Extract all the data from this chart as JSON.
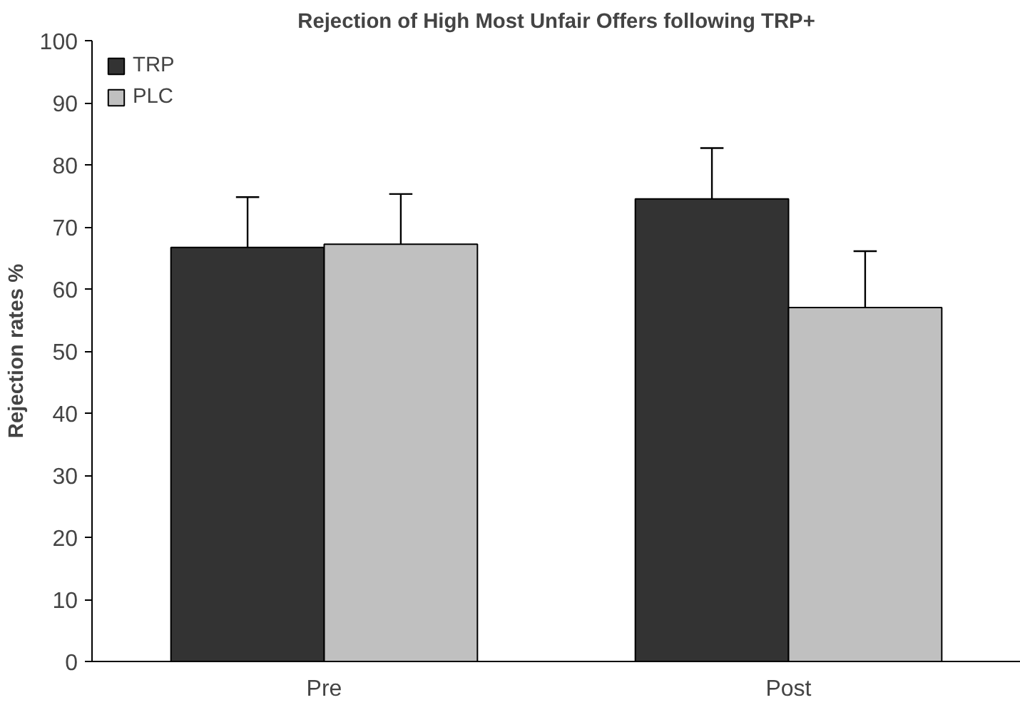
{
  "chart_data": {
    "type": "bar",
    "title": "Rejection of High Most Unfair Offers following TRP+",
    "ylabel": "Rejection rates %",
    "categories": [
      "Pre",
      "Post"
    ],
    "series": [
      {
        "name": "TRP",
        "color": "#333333",
        "values": [
          66.7,
          74.5
        ],
        "errors": [
          [
            66.7,
            74.8
          ],
          [
            74.5,
            82.7
          ]
        ]
      },
      {
        "name": "PLC",
        "color": "#c0c0c0",
        "values": [
          67.2,
          57.0
        ],
        "errors": [
          [
            67.2,
            75.3
          ],
          [
            57.0,
            66.1
          ]
        ]
      }
    ],
    "ylim": [
      0,
      100
    ],
    "yticks": [
      0,
      10,
      20,
      30,
      40,
      50,
      60,
      70,
      80,
      90,
      100
    ],
    "grid": false,
    "legend": "top left"
  }
}
